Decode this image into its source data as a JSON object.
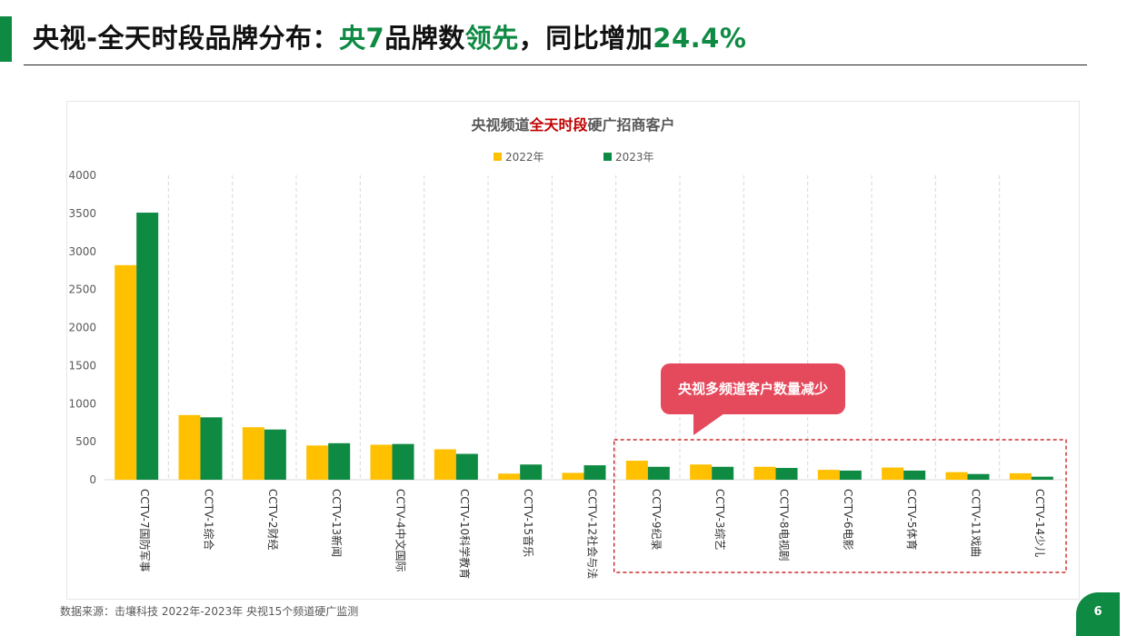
{
  "header": {
    "title_part1": "央视-全天时段品牌分布：",
    "title_part2": "央7",
    "title_part3": "品牌数",
    "title_part4": "领先",
    "title_part5": "，同比增加",
    "title_part6": "24.4%"
  },
  "callout": {
    "text": "央视多频道客户数量减少"
  },
  "footer": {
    "source": "数据来源：击壤科技  2022年-2023年 央视15个频道硬广监测",
    "page_number": "6"
  },
  "colors": {
    "accent_green": "#0e8a43",
    "series_2022": "#ffc000",
    "series_2023": "#0e8a43",
    "callout": "#e5495c",
    "highlight_box": "#c00000"
  },
  "chart_data": {
    "type": "bar",
    "title_part1": "央视频道",
    "title_part2": "全天时段",
    "title_part3": "硬广招商客户",
    "ylim": [
      0,
      4000
    ],
    "yticks": [
      0,
      500,
      1000,
      1500,
      2000,
      2500,
      3000,
      3500,
      4000
    ],
    "grid": "vertical dashed separators",
    "legend_position": "top-center",
    "categories": [
      "CCTV-7国防军事",
      "CCTV-1综合",
      "CCTV-2财经",
      "CCTV-13新闻",
      "CCTV-4中文国际",
      "CCTV-10科学教育",
      "CCTV-15音乐",
      "CCTV-12社会与法",
      "CCTV-9纪录",
      "CCTV-3综艺",
      "CCTV-8电视剧",
      "CCTV-6电影",
      "CCTV-5体育",
      "CCTV-11戏曲",
      "CCTV-14少儿"
    ],
    "series": [
      {
        "name": "2022年",
        "values": [
          2820,
          850,
          690,
          450,
          460,
          400,
          80,
          90,
          250,
          200,
          170,
          130,
          160,
          100,
          85
        ]
      },
      {
        "name": "2023年",
        "values": [
          3510,
          820,
          660,
          480,
          470,
          340,
          200,
          190,
          170,
          170,
          155,
          120,
          120,
          75,
          40
        ]
      }
    ],
    "highlight_range": [
      8,
      14
    ]
  }
}
